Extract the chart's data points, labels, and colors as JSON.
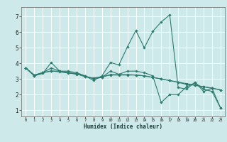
{
  "xlabel": "Humidex (Indice chaleur)",
  "background_color": "#cde9e9",
  "grid_color": "#ffffff",
  "line_color": "#2d7b6e",
  "xlim": [
    -0.5,
    23.5
  ],
  "ylim": [
    0.6,
    7.6
  ],
  "xticks": [
    0,
    1,
    2,
    3,
    4,
    5,
    6,
    7,
    8,
    9,
    10,
    11,
    12,
    13,
    14,
    15,
    16,
    17,
    18,
    19,
    20,
    21,
    22,
    23
  ],
  "yticks": [
    1,
    2,
    3,
    4,
    5,
    6,
    7
  ],
  "lines": [
    {
      "x": [
        0,
        1,
        2,
        3,
        4,
        5,
        6,
        7,
        8,
        9,
        10,
        11,
        12,
        13,
        14,
        15,
        16,
        17,
        18,
        19,
        20,
        21,
        22,
        23
      ],
      "y": [
        3.7,
        3.2,
        3.35,
        4.05,
        3.5,
        3.4,
        3.3,
        3.2,
        2.9,
        3.2,
        4.05,
        3.9,
        5.05,
        6.1,
        5.0,
        6.05,
        6.65,
        7.1,
        2.45,
        2.35,
        2.8,
        2.2,
        2.4,
        1.15
      ]
    },
    {
      "x": [
        0,
        1,
        2,
        3,
        4,
        5,
        6,
        7,
        8,
        9,
        10,
        11,
        12,
        13,
        14,
        15,
        16,
        17,
        18,
        19,
        20,
        21,
        22,
        23
      ],
      "y": [
        3.7,
        3.25,
        3.4,
        3.5,
        3.5,
        3.4,
        3.35,
        3.15,
        3.05,
        3.15,
        3.25,
        3.25,
        3.25,
        3.25,
        3.2,
        3.1,
        3.0,
        2.9,
        2.8,
        2.7,
        2.6,
        2.5,
        2.4,
        2.3
      ]
    },
    {
      "x": [
        0,
        1,
        2,
        3,
        4,
        5,
        6,
        7,
        8,
        9,
        10,
        11,
        12,
        13,
        14,
        15,
        16,
        17,
        18,
        19,
        20,
        21,
        22,
        23
      ],
      "y": [
        3.7,
        3.2,
        3.4,
        3.7,
        3.5,
        3.5,
        3.4,
        3.2,
        3.0,
        3.1,
        3.5,
        3.3,
        3.5,
        3.5,
        3.4,
        3.2,
        1.5,
        2.0,
        2.0,
        2.5,
        2.75,
        2.35,
        2.2,
        1.15
      ]
    },
    {
      "x": [
        0,
        1,
        2,
        3,
        4,
        5,
        6,
        7,
        8,
        9,
        10,
        11,
        12,
        13,
        14,
        15,
        16,
        17,
        18,
        19,
        20,
        21,
        22,
        23
      ],
      "y": [
        3.7,
        3.25,
        3.4,
        3.52,
        3.45,
        3.38,
        3.32,
        3.15,
        3.05,
        3.12,
        3.28,
        3.28,
        3.28,
        3.25,
        3.2,
        3.1,
        3.0,
        2.9,
        2.78,
        2.65,
        2.6,
        2.5,
        2.42,
        2.3
      ]
    }
  ]
}
